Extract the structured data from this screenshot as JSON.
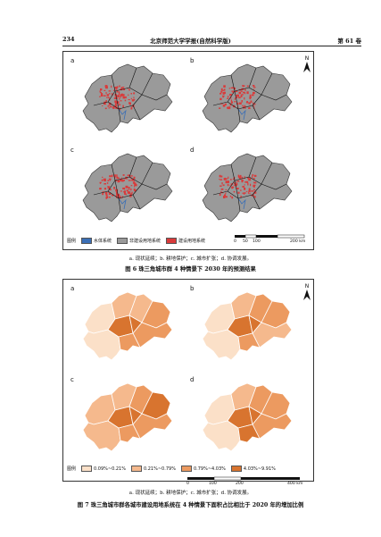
{
  "header": {
    "page_number": "234",
    "journal": "北京师范大学学报(自然科学版)",
    "volume": "第 61 卷"
  },
  "figure6": {
    "panel_labels": [
      "a",
      "b",
      "c",
      "d"
    ],
    "north": "N",
    "legend_title": "图例",
    "legend_items": [
      {
        "label": "水体系统",
        "color": "#3b6fb6"
      },
      {
        "label": "非建设用地系统",
        "color": "#9a9a9a"
      },
      {
        "label": "建设用地系统",
        "color": "#d93a3a"
      }
    ],
    "scale_ticks": [
      "0",
      "50",
      "100",
      "200 km"
    ],
    "note": "a. 现状延续；b. 耕地保护；c. 城市扩张；d. 协调发展。",
    "caption": "图 6   珠三角城市群 4 种情景下 2030 年的预测结果"
  },
  "figure7": {
    "panel_labels": [
      "a",
      "b",
      "c",
      "d"
    ],
    "north": "N",
    "legend_title": "图例",
    "legend_items": [
      {
        "label": "0.09%~0.21%",
        "color": "#fbe0c8"
      },
      {
        "label": "0.21%~0.79%",
        "color": "#f5b98d"
      },
      {
        "label": "0.79%~4.03%",
        "color": "#ec9a60"
      },
      {
        "label": "4.03%~9.91%",
        "color": "#d8742f"
      }
    ],
    "scale_ticks": [
      "0",
      "100",
      "200",
      "400 km"
    ],
    "note": "a. 现状延续；b. 耕地保护；c. 城市扩张；d. 协调发展。",
    "caption": "图 7   珠三角城市群各城市建设用地系统在 4 种情景下面积占比相比于 2020 年的增加比例"
  }
}
